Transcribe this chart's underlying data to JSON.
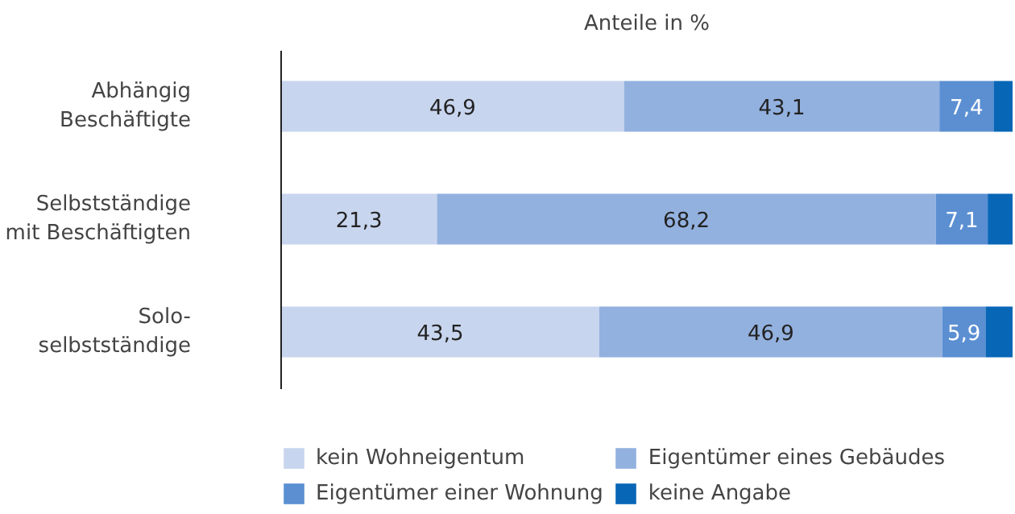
{
  "chart_data": {
    "type": "bar",
    "orientation": "horizontal",
    "stacked": true,
    "title": "Anteile in %",
    "categories": [
      "Abhängig\nBeschäftigte",
      "Selbstständige\nmit Beschäftigten",
      "Solo-\nselbstständige"
    ],
    "xlim": [
      0,
      100
    ],
    "tick_labels": "y",
    "grid": false,
    "legend": "bottom",
    "series": [
      {
        "name": "kein Wohneigentum",
        "color": "#c8d5ee",
        "values": [
          46.9,
          21.3,
          43.5
        ],
        "value_labels": [
          "46,9",
          "21,3",
          "43,5"
        ]
      },
      {
        "name": "Eigentümer eines Gebäudes",
        "color": "#93b1df",
        "values": [
          43.1,
          68.2,
          46.9
        ],
        "value_labels": [
          "43,1",
          "68,2",
          "46,9"
        ]
      },
      {
        "name": "Eigentümer einer Wohnung",
        "color": "#5b8fd2",
        "values": [
          7.4,
          7.1,
          5.9
        ],
        "value_labels": [
          "7,4",
          "7,1",
          "5,9"
        ]
      },
      {
        "name": "keine Angabe",
        "color": "#0866b6",
        "values": [
          2.6,
          3.4,
          3.7
        ],
        "value_labels": [
          null,
          null,
          null
        ]
      }
    ]
  }
}
